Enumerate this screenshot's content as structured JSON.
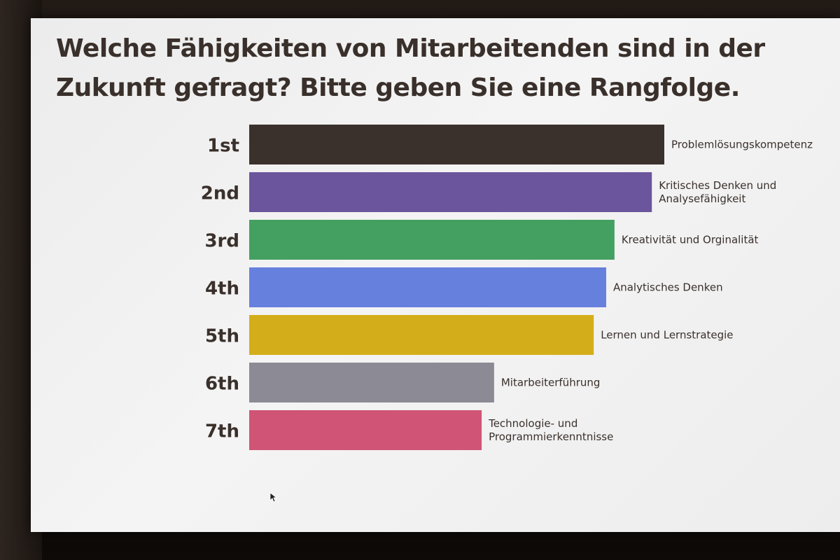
{
  "slide": {
    "title": "Welche Fähigkeiten von Mitarbeitenden sind in der Zukunft gefragt? Bitte geben Sie eine Rangfolge."
  },
  "chart_data": {
    "type": "bar",
    "orientation": "horizontal",
    "title": "",
    "categories": [
      "1st",
      "2nd",
      "3rd",
      "4th",
      "5th",
      "6th",
      "7th"
    ],
    "series": [
      {
        "labels": [
          [
            "Problemlösungskompetenz"
          ],
          [
            "Kritisches Denken und",
            "Analysefähigkeit"
          ],
          [
            "Kreativität und Orginalität"
          ],
          [
            "Analytisches Denken"
          ],
          [
            "Lernen und Lernstrategie"
          ],
          [
            "Mitarbeiterführung"
          ],
          [
            "Technologie- und",
            "Programmierkenntnisse"
          ]
        ],
        "values": [
          100,
          97,
          88,
          86,
          83,
          59,
          56
        ],
        "colors": [
          "#3b312c",
          "#6b559c",
          "#44a060",
          "#6680de",
          "#d4ae1a",
          "#8c8a94",
          "#cf5475"
        ]
      }
    ],
    "xlim": [
      0,
      100
    ],
    "grid": false,
    "legend": "none"
  }
}
